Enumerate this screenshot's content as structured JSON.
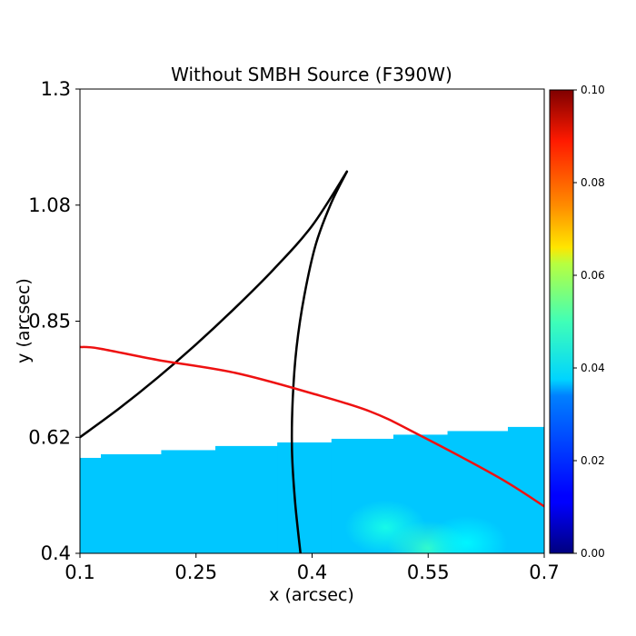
{
  "chart_data": {
    "type": "heatmap",
    "title": "Without SMBH Source (F390W)",
    "xlabel": "x (arcsec)",
    "ylabel": "y (arcsec)",
    "xlim": [
      0.1,
      0.7
    ],
    "ylim": [
      0.4,
      1.3
    ],
    "x_ticks": [
      {
        "value": 0.1,
        "label": "0.1"
      },
      {
        "value": 0.25,
        "label": "0.25"
      },
      {
        "value": 0.4,
        "label": "0.4"
      },
      {
        "value": 0.55,
        "label": "0.55"
      },
      {
        "value": 0.7,
        "label": "0.7"
      }
    ],
    "y_ticks": [
      {
        "value": 0.4,
        "label": "0.4"
      },
      {
        "value": 0.625,
        "label": "0.62"
      },
      {
        "value": 0.85,
        "label": "0.85"
      },
      {
        "value": 1.075,
        "label": "1.08"
      },
      {
        "value": 1.3,
        "label": "1.3"
      }
    ],
    "colorbar": {
      "colormap": "jet",
      "range": [
        0.0,
        0.1
      ],
      "ticks": [
        {
          "value": 0.0,
          "label": "0.00"
        },
        {
          "value": 0.02,
          "label": "0.02"
        },
        {
          "value": 0.04,
          "label": "0.04"
        },
        {
          "value": 0.06,
          "label": "0.06"
        },
        {
          "value": 0.08,
          "label": "0.08"
        },
        {
          "value": 0.1,
          "label": "0.10"
        }
      ]
    },
    "heatmap": {
      "base_value": 0.032,
      "bottom": 0.4,
      "columns": [
        {
          "x0": 0.1,
          "x1": 0.127,
          "top": 0.585
        },
        {
          "x0": 0.127,
          "x1": 0.205,
          "top": 0.592
        },
        {
          "x0": 0.205,
          "x1": 0.275,
          "top": 0.6
        },
        {
          "x0": 0.275,
          "x1": 0.355,
          "top": 0.608
        },
        {
          "x0": 0.355,
          "x1": 0.425,
          "top": 0.615
        },
        {
          "x0": 0.425,
          "x1": 0.505,
          "top": 0.622
        },
        {
          "x0": 0.505,
          "x1": 0.575,
          "top": 0.63
        },
        {
          "x0": 0.575,
          "x1": 0.653,
          "top": 0.637
        },
        {
          "x0": 0.653,
          "x1": 0.7,
          "top": 0.645
        }
      ],
      "hotspots": [
        {
          "x": 0.495,
          "y": 0.45,
          "value": 0.04
        },
        {
          "x": 0.55,
          "y": 0.41,
          "value": 0.043
        },
        {
          "x": 0.6,
          "y": 0.42,
          "value": 0.037
        }
      ]
    },
    "series": [
      {
        "color": "#000000",
        "points": [
          [
            0.1,
            0.625
          ],
          [
            0.15,
            0.68
          ],
          [
            0.2,
            0.74
          ],
          [
            0.25,
            0.805
          ],
          [
            0.3,
            0.875
          ],
          [
            0.35,
            0.95
          ],
          [
            0.4,
            1.035
          ],
          [
            0.445,
            1.14
          ]
        ]
      },
      {
        "color": "#000000",
        "points": [
          [
            0.445,
            1.14
          ],
          [
            0.425,
            1.08
          ],
          [
            0.405,
            1.0
          ],
          [
            0.39,
            0.9
          ],
          [
            0.38,
            0.8
          ],
          [
            0.375,
            0.7
          ],
          [
            0.374,
            0.6
          ],
          [
            0.378,
            0.5
          ],
          [
            0.385,
            0.4
          ]
        ]
      },
      {
        "color": "#ee1111",
        "points": [
          [
            0.1,
            0.8
          ],
          [
            0.125,
            0.797
          ],
          [
            0.2,
            0.775
          ],
          [
            0.3,
            0.75
          ],
          [
            0.4,
            0.71
          ],
          [
            0.475,
            0.675
          ],
          [
            0.535,
            0.632
          ],
          [
            0.64,
            0.548
          ],
          [
            0.7,
            0.491
          ]
        ]
      }
    ]
  }
}
